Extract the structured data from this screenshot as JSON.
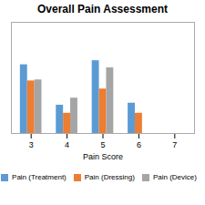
{
  "chart_data": {
    "type": "bar",
    "title": "Overall Pain Assessment",
    "xlabel": "Pain Score",
    "x": [
      3,
      4,
      5,
      6
    ],
    "series": [
      {
        "name": "Pain (Treatment)",
        "color": "#5b9bd5",
        "values": [
          0.68,
          0.28,
          0.72,
          0.3
        ]
      },
      {
        "name": "Pain (Dressing)",
        "color": "#ed7d31",
        "values": [
          0.52,
          0.2,
          0.44,
          0.2
        ]
      },
      {
        "name": "Pain (Device)",
        "color": "#a5a5a5",
        "values": [
          0.53,
          0.35,
          0.65,
          0.0
        ]
      }
    ],
    "xlim": [
      2.45,
      7.55
    ],
    "xticks": [
      3,
      4,
      5,
      6,
      7
    ],
    "ylim": [
      0,
      1.1
    ],
    "grid": false,
    "legend": "bottom",
    "tick_labels": "x"
  }
}
